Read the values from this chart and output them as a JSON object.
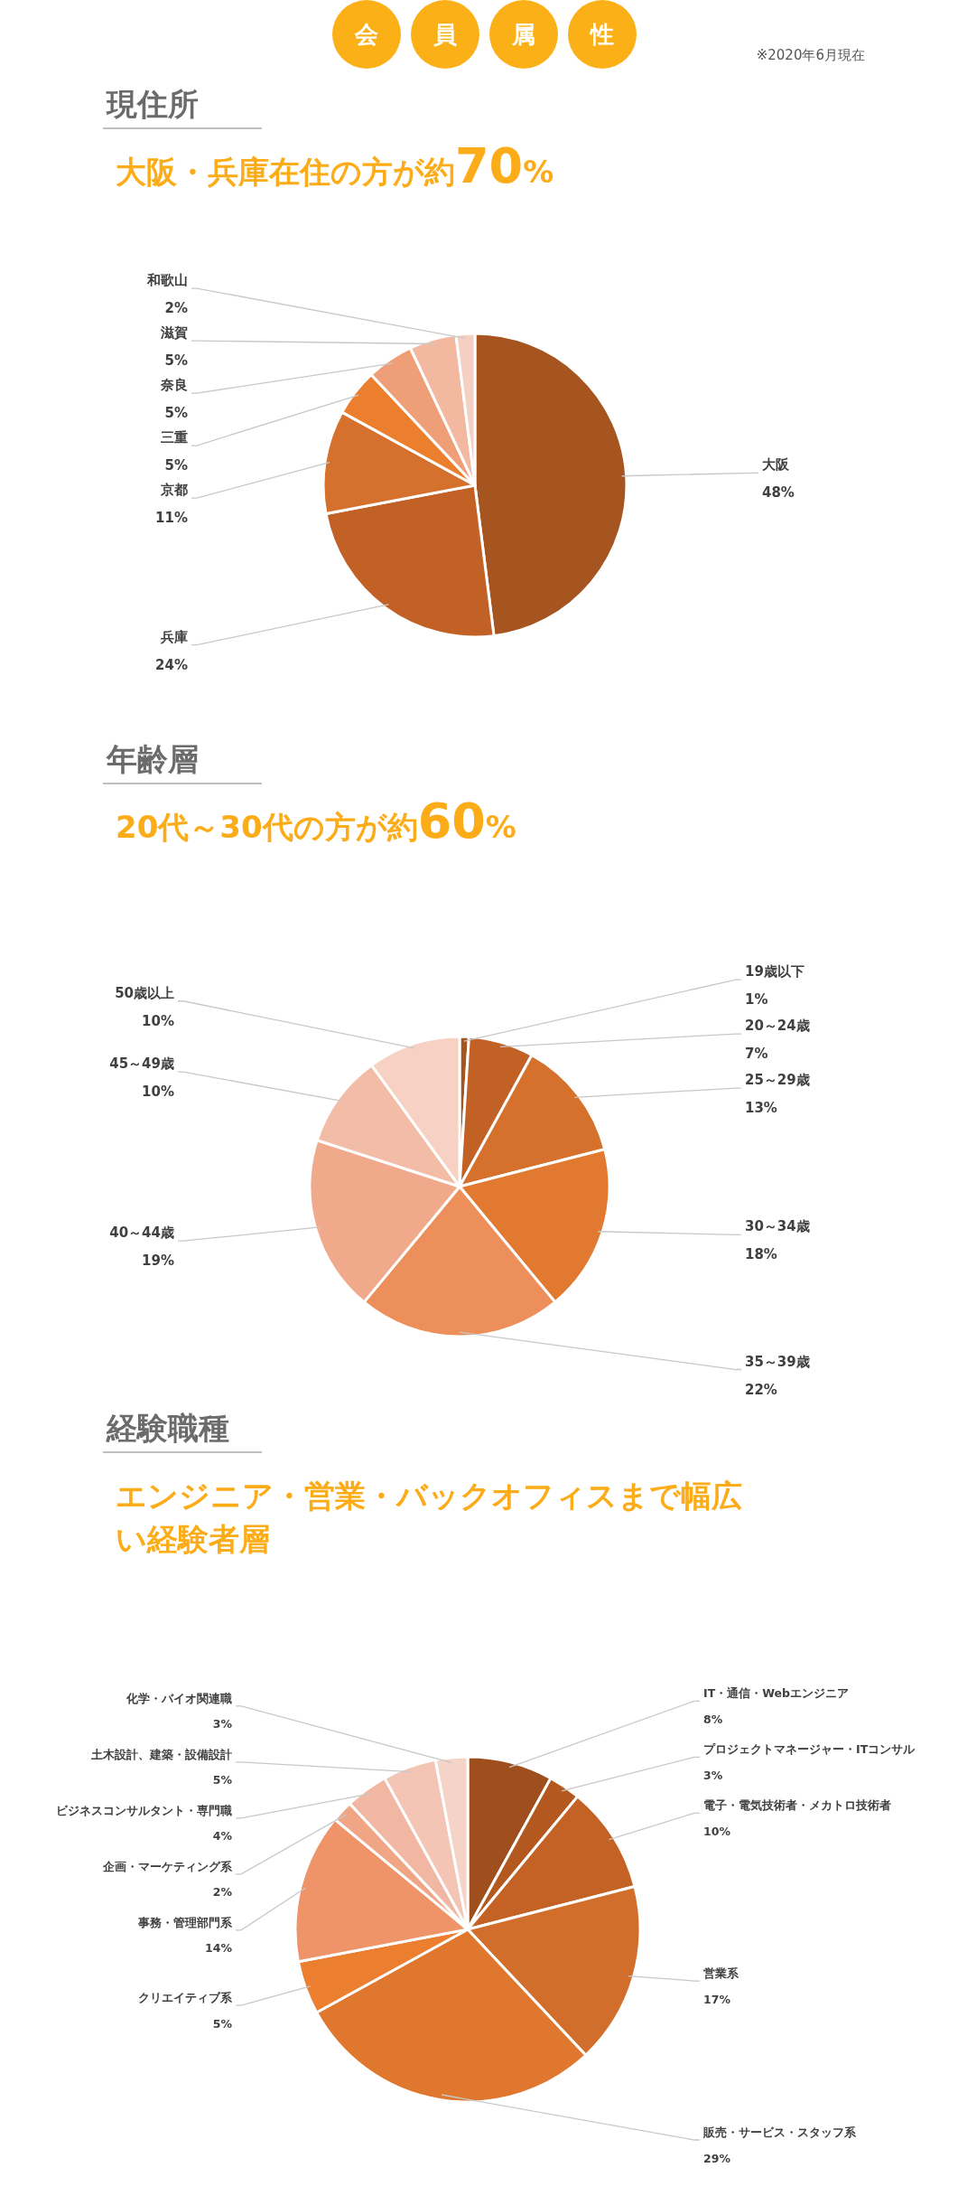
{
  "chart_data": [
    {
      "type": "pie",
      "title": "現住所",
      "subtitle": "大阪・兵庫在住の方が約70%",
      "annotations": [
        "会員属性",
        "※2020年6月現在"
      ],
      "categories": [
        "大阪",
        "兵庫",
        "京都",
        "三重",
        "奈良",
        "滋賀",
        "和歌山"
      ],
      "values": [
        48,
        24,
        11,
        5,
        5,
        5,
        2
      ],
      "value_labels": [
        "48%",
        "24%",
        "11%",
        "5%",
        "5%",
        "5%",
        "2%"
      ],
      "colors": [
        "#a65521",
        "#c26126",
        "#d5702d",
        "#ec7f2e",
        "#ef9f78",
        "#f3b8a0",
        "#f5cfc2"
      ]
    },
    {
      "type": "pie",
      "title": "年齢層",
      "subtitle": "20代～30代の方が約60%",
      "categories": [
        "19歳以下",
        "20～24歳",
        "25～29歳",
        "30～34歳",
        "35～39歳",
        "40～44歳",
        "45～49歳",
        "50歳以上"
      ],
      "values": [
        1,
        7,
        13,
        18,
        22,
        19,
        10,
        10
      ],
      "value_labels": [
        "1%",
        "7%",
        "13%",
        "18%",
        "22%",
        "19%",
        "10%",
        "10%"
      ],
      "colors": [
        "#a65521",
        "#c26126",
        "#d5702d",
        "#e27930",
        "#ec8f5a",
        "#f0a98a",
        "#f3bca7",
        "#f6d1c4"
      ]
    },
    {
      "type": "pie",
      "title": "経験職種",
      "subtitle": "エンジニア・営業・バックオフィスまで幅広い経験者層",
      "categories": [
        "IT・通信・Webエンジニア",
        "プロジェクトマネージャー・ITコンサル",
        "電子・電気技術者・メカトロ技術者",
        "営業系",
        "販売・サービス・スタッフ系",
        "クリエイティブ系",
        "事務・管理部門系",
        "企画・マーケティング系",
        "ビジネスコンサルタント・専門職",
        "土木設計、建築・設備設計",
        "化学・バイオ関連職"
      ],
      "values": [
        8,
        3,
        10,
        17,
        29,
        5,
        14,
        2,
        4,
        5,
        3
      ],
      "value_labels": [
        "8%",
        "3%",
        "10%",
        "17%",
        "29%",
        "5%",
        "14%",
        "2%",
        "4%",
        "5%",
        "3%"
      ],
      "colors": [
        "#9f4f1d",
        "#b3581f",
        "#c46225",
        "#d26e2b",
        "#df772e",
        "#ec7f2f",
        "#ee9468",
        "#f0a585",
        "#f2b7a2",
        "#f4c4b5",
        "#f5d3c7"
      ]
    }
  ]
}
